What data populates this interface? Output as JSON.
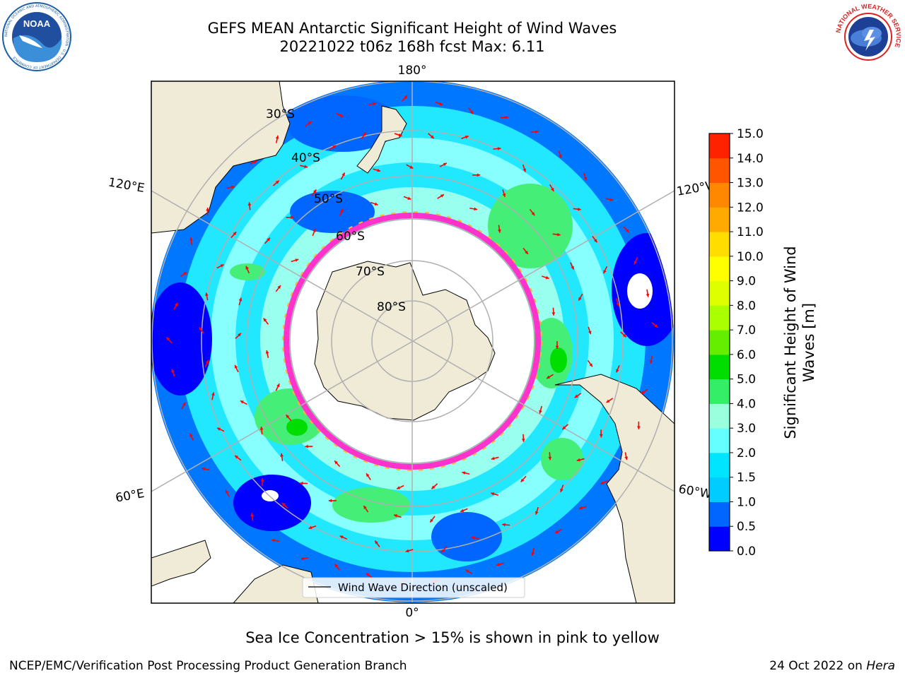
{
  "header": {
    "title_line1": "GEFS MEAN Antarctic Significant Height of Wind Waves",
    "title_line2": "20221022 t06z 168h fcst   Max: 6.11"
  },
  "logos": {
    "noaa": {
      "text": "NOAA",
      "ring_text": "NATIONAL OCEANIC AND ATMOSPHERIC ADMINISTRATION · U.S. DEPARTMENT OF COMMERCE"
    },
    "nws": {
      "ring_text": "NATIONAL WEATHER SERVICE"
    }
  },
  "map": {
    "projection": "south-polar-stereographic",
    "longitude_labels": {
      "top": "180°",
      "bottom": "0°",
      "left_upper": "120°E",
      "left_lower": "60°E",
      "right_upper": "120°W",
      "right_lower": "60°W"
    },
    "latitude_labels": [
      "30°S",
      "40°S",
      "50°S",
      "60°S",
      "70°S",
      "80°S"
    ],
    "legend_label": "Wind Wave Direction (unscaled)",
    "arrow_color": "#ff0000",
    "land_color": "#efebd7",
    "sea_ice_colors": [
      "#ff33cc",
      "#ffb533",
      "#ffff33"
    ]
  },
  "colorbar": {
    "label": "Significant Height of Wind Waves [m]",
    "ticks": [
      "0.0",
      "0.5",
      "1.0",
      "1.5",
      "2.0",
      "3.0",
      "4.0",
      "5.0",
      "6.0",
      "7.0",
      "8.0",
      "9.0",
      "10.0",
      "11.0",
      "12.0",
      "13.0",
      "14.0",
      "15.0"
    ],
    "colors": [
      "#0000ff",
      "#0066ff",
      "#00ccff",
      "#00e5ff",
      "#66ffff",
      "#99ffdd",
      "#33ee66",
      "#00dd00",
      "#66ee00",
      "#aaff00",
      "#ddff00",
      "#ffff00",
      "#ffdd00",
      "#ffaa00",
      "#ff8800",
      "#ff5500",
      "#ff2200"
    ]
  },
  "footer": {
    "caption": "Sea Ice Concentration > 15% is shown in pink to yellow",
    "credit": "NCEP/EMC/Verification Post Processing Product Generation Branch",
    "date_prefix": "24 Oct 2022 on ",
    "date_machine": "Hera"
  }
}
